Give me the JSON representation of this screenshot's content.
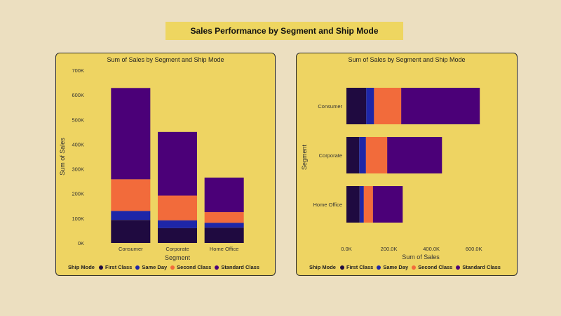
{
  "page": {
    "title": "Sales Performance by Segment and Ship Mode"
  },
  "colors": {
    "First Class": "#1f0a40",
    "Same Day": "#1e26a8",
    "Second Class": "#f26b3b",
    "Standard Class": "#4b0078"
  },
  "chart_data": [
    {
      "type": "bar",
      "orientation": "vertical",
      "stacked": true,
      "title": "Sum of Sales by Segment and Ship Mode",
      "xlabel": "Segment",
      "ylabel": "Sum of Sales",
      "ylim": [
        0,
        700000
      ],
      "yticks": [
        0,
        100000,
        200000,
        300000,
        400000,
        500000,
        600000,
        700000
      ],
      "ytick_labels": [
        "0K",
        "100K",
        "200K",
        "300K",
        "400K",
        "500K",
        "600K",
        "700K"
      ],
      "categories": [
        "Consumer",
        "Corporate",
        "Home Office"
      ],
      "legend_title": "Ship Mode",
      "legend_position": "bottom",
      "series": [
        {
          "name": "First Class",
          "values": [
            93000,
            60000,
            62000
          ]
        },
        {
          "name": "Same Day",
          "values": [
            37000,
            32000,
            20000
          ]
        },
        {
          "name": "Second Class",
          "values": [
            128000,
            100000,
            43000
          ]
        },
        {
          "name": "Standard Class",
          "values": [
            370000,
            258000,
            140000
          ]
        }
      ]
    },
    {
      "type": "bar",
      "orientation": "horizontal",
      "stacked": true,
      "title": "Sum of Sales by Segment and Ship Mode",
      "xlabel": "Sum of Sales",
      "ylabel": "Segment",
      "xlim": [
        0,
        700000
      ],
      "xticks": [
        0,
        200000,
        400000,
        600000
      ],
      "xtick_labels": [
        "0.0K",
        "200.0K",
        "400.0K",
        "600.0K"
      ],
      "categories": [
        "Consumer",
        "Corporate",
        "Home Office"
      ],
      "legend_title": "Ship Mode",
      "legend_position": "bottom",
      "series": [
        {
          "name": "First Class",
          "values": [
            93000,
            60000,
            62000
          ]
        },
        {
          "name": "Same Day",
          "values": [
            37000,
            32000,
            20000
          ]
        },
        {
          "name": "Second Class",
          "values": [
            128000,
            100000,
            43000
          ]
        },
        {
          "name": "Standard Class",
          "values": [
            370000,
            258000,
            140000
          ]
        }
      ]
    }
  ]
}
